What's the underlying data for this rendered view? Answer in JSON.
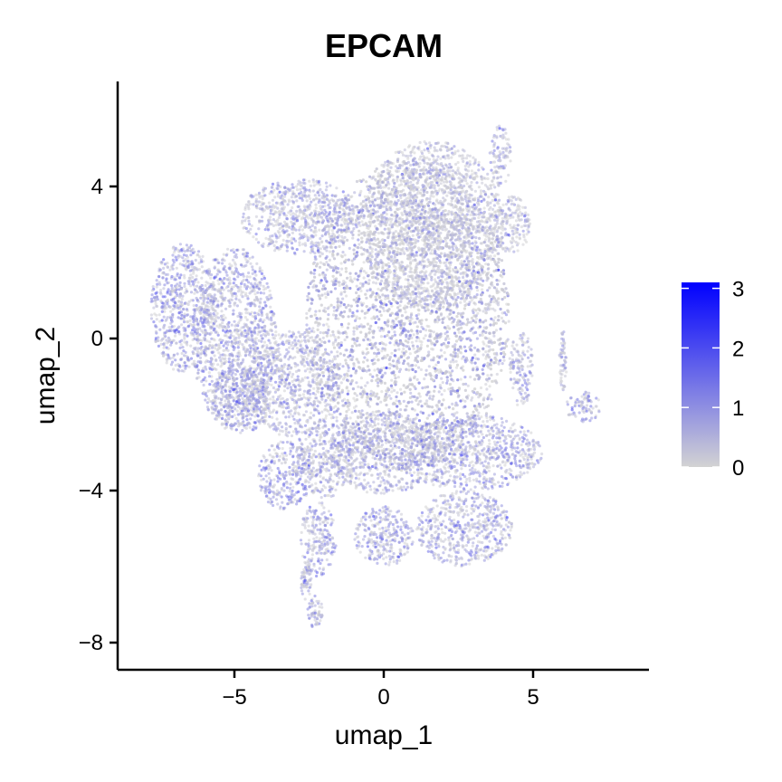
{
  "chart_data": {
    "type": "scatter",
    "title": "EPCAM",
    "xlabel": "umap_1",
    "ylabel": "umap_2",
    "xlim": [
      -8.7,
      8.7
    ],
    "ylim": [
      -8.6,
      6.7
    ],
    "x_ticks": [
      {
        "value": -5,
        "label": "−5"
      },
      {
        "value": 0,
        "label": "0"
      },
      {
        "value": 5,
        "label": "5"
      }
    ],
    "y_ticks": [
      {
        "value": 4,
        "label": "4"
      },
      {
        "value": 0,
        "label": "0"
      },
      {
        "value": -4,
        "label": "−4"
      },
      {
        "value": -8,
        "label": "−8"
      }
    ],
    "grid": false,
    "legend": "right",
    "colorbar": {
      "min": 0,
      "max": 3.1,
      "ticks": [
        {
          "value": 0,
          "label": "0"
        },
        {
          "value": 1,
          "label": "1"
        },
        {
          "value": 2,
          "label": "2"
        },
        {
          "value": 3,
          "label": "3"
        }
      ],
      "low_color": "#d3d3d3",
      "high_color": "#0000ff"
    },
    "clusters": [
      {
        "cx": 0.8,
        "cy": 0.6,
        "rx": 3.4,
        "ry": 4.1,
        "mean_expr": 0.5
      },
      {
        "cx": 1.6,
        "cy": 3.0,
        "rx": 2.4,
        "ry": 2.2,
        "mean_expr": 0.35
      },
      {
        "cx": -2.8,
        "cy": 3.2,
        "rx": 2.0,
        "ry": 1.0,
        "mean_expr": 0.75
      },
      {
        "cx": -6.7,
        "cy": 0.8,
        "rx": 1.1,
        "ry": 1.7,
        "mean_expr": 0.95
      },
      {
        "cx": -5.0,
        "cy": 0.0,
        "rx": 1.4,
        "ry": 2.4,
        "mean_expr": 0.8
      },
      {
        "cx": -4.8,
        "cy": -1.6,
        "rx": 1.0,
        "ry": 0.9,
        "mean_expr": 0.9
      },
      {
        "cx": -3.0,
        "cy": -1.2,
        "rx": 1.6,
        "ry": 1.4,
        "mean_expr": 0.65
      },
      {
        "cx": -3.3,
        "cy": -3.6,
        "rx": 0.9,
        "ry": 0.9,
        "mean_expr": 0.95
      },
      {
        "cx": -2.0,
        "cy": -3.2,
        "rx": 1.0,
        "ry": 1.0,
        "mean_expr": 0.7
      },
      {
        "cx": -2.2,
        "cy": -5.3,
        "rx": 0.6,
        "ry": 1.0,
        "mean_expr": 0.9
      },
      {
        "cx": 0.0,
        "cy": -5.2,
        "rx": 1.0,
        "ry": 0.8,
        "mean_expr": 0.95
      },
      {
        "cx": 0.0,
        "cy": -3.0,
        "rx": 1.8,
        "ry": 1.1,
        "mean_expr": 0.7
      },
      {
        "cx": 2.7,
        "cy": -5.0,
        "rx": 1.6,
        "ry": 1.0,
        "mean_expr": 0.75
      },
      {
        "cx": 2.9,
        "cy": -3.0,
        "rx": 2.4,
        "ry": 1.0,
        "mean_expr": 0.85
      },
      {
        "cx": 3.9,
        "cy": 4.8,
        "rx": 0.35,
        "ry": 0.8,
        "mean_expr": 0.6
      },
      {
        "cx": 4.3,
        "cy": 3.0,
        "rx": 0.6,
        "ry": 0.8,
        "mean_expr": 0.5
      },
      {
        "cx": 4.6,
        "cy": -0.8,
        "rx": 0.4,
        "ry": 1.0,
        "mean_expr": 0.7
      },
      {
        "cx": 6.7,
        "cy": -1.8,
        "rx": 0.6,
        "ry": 0.4,
        "mean_expr": 0.9
      },
      {
        "cx": 6.0,
        "cy": -0.6,
        "rx": 0.12,
        "ry": 0.8,
        "mean_expr": 0.6
      },
      {
        "cx": -2.3,
        "cy": -7.2,
        "rx": 0.25,
        "ry": 0.45,
        "mean_expr": 0.8
      },
      {
        "cx": -2.6,
        "cy": -6.4,
        "rx": 0.18,
        "ry": 0.5,
        "mean_expr": 0.7
      }
    ]
  }
}
